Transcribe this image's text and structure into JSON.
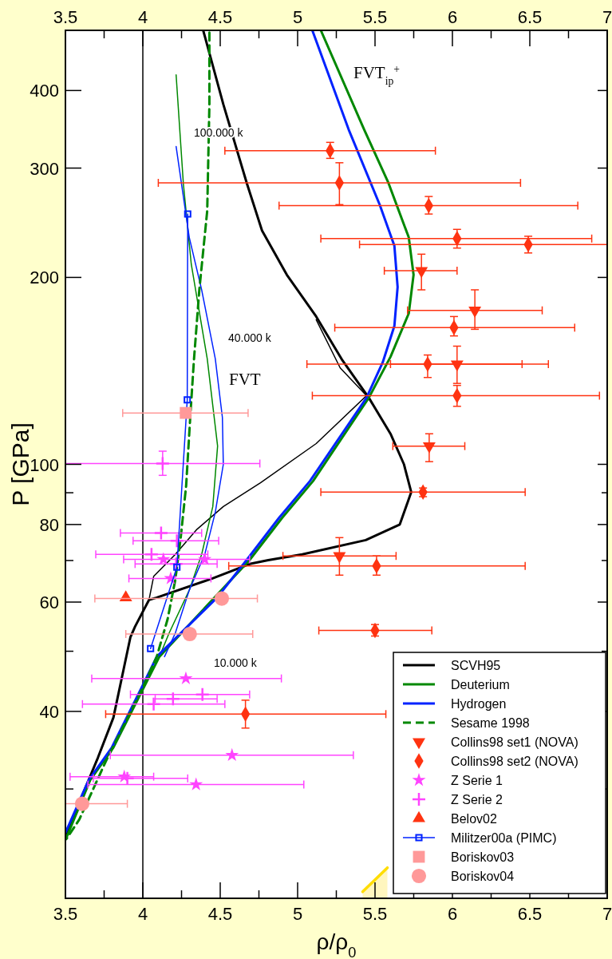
{
  "chart_data": {
    "type": "line",
    "xlabel": "ρ/ρ$_{0}$",
    "ylabel": "P [GPa]",
    "xlim": [
      3.5,
      7
    ],
    "xticks": [
      3.5,
      {
        "value": 3.75,
        "label": null
      },
      4,
      {
        "value": 4.25,
        "label": null
      },
      4.5,
      {
        "value": 4.75,
        "label": null
      },
      5,
      {
        "value": 5.25,
        "label": null
      },
      5.5,
      {
        "value": 5.75,
        "label": null
      },
      6,
      {
        "value": 6.25,
        "label": null
      },
      6.5,
      {
        "value": 6.75,
        "label": null
      },
      7
    ],
    "x2lim": [
      3.5,
      7
    ],
    "x2ticks": [
      3.5,
      {
        "value": 3.75,
        "label": null
      },
      4,
      {
        "value": 4.25,
        "label": null
      },
      4.5,
      {
        "value": 4.75,
        "label": null
      },
      5,
      {
        "value": 5.25,
        "label": null
      },
      5.5,
      {
        "value": 5.75,
        "label": null
      },
      6,
      {
        "value": 6.25,
        "label": null
      },
      6.5,
      {
        "value": 6.75,
        "label": null
      },
      7
    ],
    "ylim": [
      20,
      500
    ],
    "yticks": [
      {
        "value": 30,
        "label": null
      },
      40,
      {
        "value": 50,
        "label": null
      },
      60,
      {
        "value": 70,
        "label": null
      },
      80,
      {
        "value": 90,
        "label": null
      },
      100,
      200,
      300,
      400
    ],
    "log": "y",
    "legend": "bottom right",
    "ref_lines": [
      {
        "axis": "x",
        "value": 4,
        "color": "#000000"
      }
    ],
    "annotations": [
      "100.000 k",
      "40.000 k",
      "FVT",
      "10.000 k",
      "FVT$_{ip}$$^{+}$"
    ],
    "series": [
      {
        "type": "area",
        "color": "#ffdd00",
        "x": [
          5.42,
          5.58
        ],
        "values": [
          20.5,
          22.4
        ]
      },
      {
        "color": "#000000",
        "x": [
          5.12,
          5.275,
          5.445,
          5.12,
          4.76,
          4.52,
          4.35,
          4.21,
          4.07,
          4.04
        ],
        "values": [
          171,
          143,
          129,
          108,
          93.4,
          85.5,
          78.6,
          71.6,
          66,
          60.5
        ]
      },
      {
        "name": "SCVH95",
        "color": "#000000",
        "x": [
          4.39,
          4.52,
          4.673,
          4.77,
          4.93,
          5.12,
          5.29,
          5.46,
          5.6,
          5.687,
          5.734,
          5.66,
          5.44,
          5.03,
          4.81,
          4.69,
          4.45,
          4.09,
          4.04,
          3.95,
          3.92,
          3.81,
          3.71,
          3.505
        ],
        "values": [
          500,
          380,
          283,
          238,
          202,
          173,
          147,
          128,
          112,
          100,
          90.2,
          80,
          75.5,
          71.6,
          70.1,
          69.1,
          65.5,
          61,
          60.5,
          54.8,
          52.7,
          39.1,
          33.7,
          25.4
        ]
      },
      {
        "name": "Deuterium",
        "color": "#008800",
        "x": [
          5.15,
          5.43,
          5.584,
          5.718,
          5.749,
          5.718,
          5.6,
          5.46,
          5.1,
          4.9,
          4.689,
          4.107,
          4.004,
          3.81,
          3.66,
          3.505
        ],
        "values": [
          500,
          346,
          285,
          232,
          202,
          175,
          149,
          128,
          94,
          82,
          70.1,
          49,
          43.6,
          35,
          31,
          25
        ]
      },
      {
        "color": "#008800",
        "x": [
          4.215,
          4.262,
          4.313,
          4.416,
          4.483,
          4.452,
          4.38,
          4.3,
          4.17,
          4.107
        ],
        "values": [
          424,
          283,
          210,
          148,
          107,
          85.5,
          71.6,
          62.7,
          53.5,
          49
        ]
      },
      {
        "name": "Hydrogen",
        "color": "#0022ff",
        "x": [
          5.095,
          5.33,
          5.53,
          5.625,
          5.646,
          5.625,
          5.55,
          5.445,
          5.08,
          4.88,
          4.67,
          4.48,
          4.09,
          3.99,
          3.8,
          3.65,
          3.5
        ],
        "values": [
          500,
          346,
          262,
          225,
          193,
          167,
          146,
          128,
          94,
          82,
          70.1,
          61,
          49,
          43.6,
          35,
          31,
          25.5
        ]
      },
      {
        "color": "#0022ff",
        "x": [
          4.215,
          4.3,
          4.38,
          4.468,
          4.514,
          4.52,
          4.468,
          4.4,
          4.3,
          4.21,
          4.14
        ],
        "values": [
          325,
          232,
          191,
          148,
          119,
          100,
          83.7,
          71.6,
          62.7,
          53.5,
          49
        ]
      },
      {
        "name": "Sesame 1998",
        "color": "#008800",
        "line_style": "dashed",
        "x": [
          4.43,
          4.43,
          4.416,
          4.365,
          4.33,
          4.308,
          4.28,
          4.245,
          4.21,
          4.16,
          4.09,
          3.99,
          3.76,
          3.59,
          3.505
        ],
        "values": [
          496,
          380,
          256,
          191,
          147,
          121,
          92.5,
          76.3,
          65.2,
          56.3,
          49,
          43.2,
          33.2,
          26.8,
          24.9
        ]
      },
      {
        "type": "scatter",
        "name": "Collins98 set1 (NOVA)",
        "color": "#ff3311",
        "marker": "triangle-down",
        "x": [
          5.8,
          6.145,
          6.03,
          5.85,
          5.27
        ],
        "values": [
          205,
          177,
          145,
          107,
          71.2
        ],
        "errors": [
          [
            191,
            218
          ],
          [
            165,
            191
          ],
          [
            135,
            155
          ],
          [
            101,
            112
          ],
          [
            66.3,
            76.2
          ]
        ],
        "xerrors": [
          [
            5.56,
            6.03
          ],
          [
            5.71,
            6.58
          ],
          [
            5.6,
            6.62
          ],
          [
            5.615,
            6.08
          ],
          [
            4.905,
            5.636
          ]
        ]
      },
      {
        "type": "scatter",
        "name": "Collins98 set2 (NOVA)",
        "color": "#ff3311",
        "marker": "diamond",
        "x": [
          5.21,
          5.27,
          5.847,
          6.03,
          6.49,
          6.01,
          5.84,
          6.03,
          5.81,
          5.51,
          5.5,
          4.663
        ],
        "values": [
          320,
          284,
          261,
          231,
          226,
          166,
          145,
          129,
          90.2,
          68.6,
          54,
          39.6
        ],
        "errors": [
          [
            311,
            330
          ],
          [
            262,
            306
          ],
          [
            253,
            270
          ],
          [
            223,
            239
          ],
          [
            219,
            233
          ],
          [
            161,
            173
          ],
          [
            138,
            150
          ],
          [
            124,
            134
          ],
          [
            88.7,
            91.6
          ],
          [
            66.3,
            71.2
          ],
          [
            52.9,
            55.2
          ],
          [
            37.6,
            41.7
          ]
        ],
        "xerrors": [
          [
            4.53,
            5.89
          ],
          [
            4.1,
            6.44
          ],
          [
            4.88,
            6.81
          ],
          [
            5.15,
            6.9
          ],
          [
            5.4,
            7
          ],
          [
            5.24,
            6.79
          ],
          [
            5.06,
            6.45
          ],
          [
            5.095,
            6.95
          ],
          [
            5.15,
            6.47
          ],
          [
            4.555,
            6.47
          ],
          [
            5.137,
            5.867
          ],
          [
            3.76,
            5.57
          ]
        ]
      },
      {
        "type": "scatter",
        "name": "Z Serie 1",
        "color": "#ff44ff",
        "marker": "star",
        "x": [
          4.133,
          4.4,
          4.18,
          4.278,
          4.576,
          3.88,
          4.344
        ],
        "values": [
          70.3,
          70.3,
          65.5,
          45.2,
          34,
          31.4,
          30.5
        ],
        "xerrors": [
          null,
          [
            3.876,
            4.69
          ],
          [
            3.91,
            4.44
          ],
          [
            3.67,
            4.895
          ],
          [
            3.79,
            5.36
          ],
          [
            3.53,
            4.07
          ],
          [
            3.645,
            5.04
          ]
        ]
      },
      {
        "type": "scatter",
        "name": "Z Serie 2",
        "color": "#ff44ff",
        "marker": "cross",
        "x": [
          4.128,
          4.118,
          4.22,
          4.056,
          4.215,
          4.195,
          4.385,
          4.07,
          3.9
        ],
        "values": [
          100.3,
          77.5,
          75.3,
          71.6,
          69.1,
          41.9,
          42.6,
          41.1,
          31.2
        ],
        "errors": [
          [
            96,
            105
          ],
          null,
          null,
          null,
          null,
          null,
          null,
          null,
          null
        ],
        "xerrors": [
          [
            3.5,
            4.756
          ],
          [
            3.855,
            4.38
          ],
          [
            3.937,
            4.49
          ],
          [
            3.696,
            4.42
          ],
          [
            3.95,
            4.48
          ],
          [
            4.08,
            4.48
          ],
          [
            3.92,
            4.69
          ],
          [
            3.61,
            4.53
          ],
          [
            3.68,
            4.29
          ]
        ]
      },
      {
        "type": "scatter",
        "name": "Belov02",
        "color": "#ff3311",
        "marker": "triangle",
        "x": [
          3.89
        ],
        "values": [
          61
        ]
      },
      {
        "name": "Militzer00a (PIMC)",
        "color": "#0022ff",
        "marker": "square",
        "x": [
          4.29,
          4.287,
          4.22,
          4.05
        ],
        "values": [
          253,
          127,
          68.3,
          50.5
        ]
      },
      {
        "type": "scatter",
        "name": "Boriskov03",
        "color": "#ff9999",
        "marker": "square",
        "x": [
          4.277
        ],
        "values": [
          121
        ],
        "xerrors": [
          [
            3.87,
            4.68
          ]
        ]
      },
      {
        "type": "scatter",
        "name": "Boriskov04",
        "color": "#ff9999",
        "marker": "circle",
        "x": [
          4.51,
          4.303,
          3.608
        ],
        "values": [
          60.8,
          53.3,
          28.4
        ],
        "xerrors": [
          [
            3.69,
            4.74
          ],
          [
            3.89,
            4.71
          ],
          [
            3.5,
            3.9
          ]
        ]
      }
    ]
  }
}
